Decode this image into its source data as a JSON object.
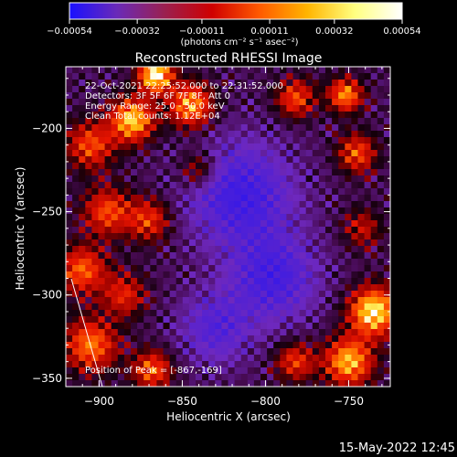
{
  "chart_data": {
    "type": "heatmap",
    "title": "Reconstructed RHESSI Image",
    "xlabel": "Heliocentric X (arcsec)",
    "ylabel": "Heliocentric Y (arcsec)",
    "xlim": [
      -920,
      -725
    ],
    "ylim": [
      -355,
      -163
    ],
    "xticks": [
      -900,
      -850,
      -800,
      -750
    ],
    "xtick_labels": [
      "−900",
      "−850",
      "−800",
      "−750"
    ],
    "yticks": [
      -200,
      -250,
      -300,
      -350
    ],
    "ytick_labels": [
      "−200",
      "−250",
      "−300",
      "−350"
    ],
    "colorbar": {
      "range": [
        -0.00054,
        0.00054
      ],
      "ticks": [
        -0.00054,
        -0.00032,
        -0.00011,
        0.00011,
        0.00032,
        0.00054
      ],
      "tick_labels": [
        "−0.00054",
        "−0.00032",
        "−0.00011",
        "0.00011",
        "0.00032",
        "0.00054"
      ],
      "units": "(photons cm⁻² s⁻¹ asec⁻²)",
      "colors": [
        "#1a10ff",
        "#6a2ab8",
        "#9a2050",
        "#d00000",
        "#ff5a00",
        "#ffb400",
        "#ffff80",
        "#ffffff"
      ]
    },
    "annotations": [
      "22-Oct-2021 22:25:52.000 to 22:31:52.000",
      "Detectors: 3F 5F 6F 7F 8F, Att 0",
      "Energy Range: 25.0 - 50.0 keV",
      "Clean     Total counts: 1.12E+04"
    ],
    "peak_label": "Position of Peak = [-867,-169]",
    "peak": [
      -867,
      -169
    ],
    "sources": [
      {
        "x": -866,
        "y": -168,
        "amp": 1.0,
        "sigma": 7
      },
      {
        "x": -845,
        "y": -186,
        "amp": 0.75,
        "sigma": 9
      },
      {
        "x": -880,
        "y": -195,
        "amp": 0.85,
        "sigma": 9
      },
      {
        "x": -905,
        "y": -210,
        "amp": 0.55,
        "sigma": 10
      },
      {
        "x": -895,
        "y": -250,
        "amp": 0.55,
        "sigma": 10
      },
      {
        "x": -870,
        "y": -255,
        "amp": 0.5,
        "sigma": 9
      },
      {
        "x": -910,
        "y": -285,
        "amp": 0.6,
        "sigma": 10
      },
      {
        "x": -885,
        "y": -300,
        "amp": 0.45,
        "sigma": 9
      },
      {
        "x": -905,
        "y": -330,
        "amp": 0.65,
        "sigma": 11
      },
      {
        "x": -868,
        "y": -345,
        "amp": 0.6,
        "sigma": 8
      },
      {
        "x": -840,
        "y": -225,
        "amp": 0.4,
        "sigma": 8
      },
      {
        "x": -782,
        "y": -182,
        "amp": 0.55,
        "sigma": 8
      },
      {
        "x": -752,
        "y": -180,
        "amp": 0.7,
        "sigma": 7
      },
      {
        "x": -745,
        "y": -215,
        "amp": 0.55,
        "sigma": 8
      },
      {
        "x": -742,
        "y": -260,
        "amp": 0.35,
        "sigma": 8
      },
      {
        "x": -735,
        "y": -310,
        "amp": 0.95,
        "sigma": 10
      },
      {
        "x": -750,
        "y": -340,
        "amp": 0.8,
        "sigma": 10
      },
      {
        "x": -782,
        "y": -340,
        "amp": 0.5,
        "sigma": 8
      }
    ],
    "negative_regions": [
      {
        "x": -815,
        "y": -240,
        "amp": 0.55,
        "sigma": 22
      },
      {
        "x": -795,
        "y": -290,
        "amp": 0.5,
        "sigma": 18
      },
      {
        "x": -830,
        "y": -320,
        "amp": 0.4,
        "sigma": 15
      }
    ],
    "grid": false
  },
  "footer": {
    "date": "15-May-2022 12:45"
  }
}
